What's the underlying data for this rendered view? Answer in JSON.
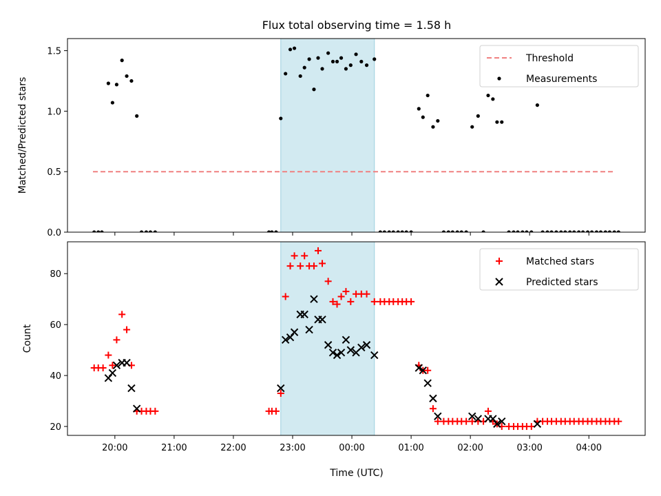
{
  "chart_data": {
    "title": "Flux total observing time = 1.58 h",
    "xlabel": "Time (UTC)",
    "x_unit": "hours UTC (values past 24 are after midnight)",
    "x_ticks": [
      {
        "value": 20,
        "label": "20:00"
      },
      {
        "value": 21,
        "label": "21:00"
      },
      {
        "value": 22,
        "label": "22:00"
      },
      {
        "value": 23,
        "label": "23:00"
      },
      {
        "value": 24,
        "label": "00:00"
      },
      {
        "value": 25,
        "label": "01:00"
      },
      {
        "value": 26,
        "label": "02:00"
      },
      {
        "value": 27,
        "label": "03:00"
      },
      {
        "value": 28,
        "label": "04:00"
      }
    ],
    "xlim": [
      19.2,
      28.95
    ],
    "shaded_interval": {
      "x": [
        22.8,
        24.38
      ],
      "color": "#add8e6"
    },
    "panels": [
      {
        "type": "scatter",
        "ylabel": "Matched/Predicted stars",
        "ylim": [
          0,
          1.6
        ],
        "y_ticks": [
          {
            "value": 0,
            "label": "0.0"
          },
          {
            "value": 0.5,
            "label": "0.5"
          },
          {
            "value": 1.0,
            "label": "1.0"
          },
          {
            "value": 1.5,
            "label": "1.5"
          }
        ],
        "legend": {
          "position": "upper-right",
          "items": [
            "Threshold",
            "Measurements"
          ]
        },
        "series": [
          {
            "name": "Threshold",
            "style": "dashed-line",
            "color": "#f08080",
            "x": [
              19.63,
              28.45
            ],
            "y": [
              0.5,
              0.5
            ]
          },
          {
            "name": "Measurements",
            "style": "dot",
            "color": "#000000",
            "points": [
              [
                19.65,
                0
              ],
              [
                19.72,
                0
              ],
              [
                19.78,
                0
              ],
              [
                19.89,
                1.23
              ],
              [
                19.96,
                1.07
              ],
              [
                20.03,
                1.22
              ],
              [
                20.12,
                1.42
              ],
              [
                20.2,
                1.29
              ],
              [
                20.28,
                1.25
              ],
              [
                20.37,
                0.96
              ],
              [
                20.45,
                0
              ],
              [
                20.53,
                0
              ],
              [
                20.6,
                0
              ],
              [
                20.68,
                0
              ],
              [
                22.6,
                0
              ],
              [
                22.65,
                0
              ],
              [
                22.72,
                0
              ],
              [
                22.8,
                0.94
              ],
              [
                22.88,
                1.31
              ],
              [
                22.96,
                1.51
              ],
              [
                23.03,
                1.52
              ],
              [
                23.13,
                1.29
              ],
              [
                23.2,
                1.36
              ],
              [
                23.28,
                1.43
              ],
              [
                23.36,
                1.18
              ],
              [
                23.43,
                1.44
              ],
              [
                23.5,
                1.35
              ],
              [
                23.6,
                1.48
              ],
              [
                23.68,
                1.41
              ],
              [
                23.75,
                1.41
              ],
              [
                23.82,
                1.44
              ],
              [
                23.9,
                1.35
              ],
              [
                23.98,
                1.38
              ],
              [
                24.07,
                1.47
              ],
              [
                24.16,
                1.41
              ],
              [
                24.25,
                1.38
              ],
              [
                24.38,
                1.43
              ],
              [
                24.48,
                0
              ],
              [
                24.55,
                0
              ],
              [
                24.63,
                0
              ],
              [
                24.7,
                0
              ],
              [
                24.78,
                0
              ],
              [
                24.85,
                0
              ],
              [
                24.92,
                0
              ],
              [
                25.0,
                0
              ],
              [
                25.13,
                1.02
              ],
              [
                25.2,
                0.95
              ],
              [
                25.28,
                1.13
              ],
              [
                25.37,
                0.87
              ],
              [
                25.45,
                0.92
              ],
              [
                25.55,
                0
              ],
              [
                25.63,
                0
              ],
              [
                25.7,
                0
              ],
              [
                25.78,
                0
              ],
              [
                25.85,
                0
              ],
              [
                25.93,
                0
              ],
              [
                26.03,
                0.87
              ],
              [
                26.13,
                0.96
              ],
              [
                26.22,
                0
              ],
              [
                26.3,
                1.13
              ],
              [
                26.38,
                1.1
              ],
              [
                26.45,
                0.91
              ],
              [
                26.53,
                0.91
              ],
              [
                26.65,
                0
              ],
              [
                26.73,
                0
              ],
              [
                26.8,
                0
              ],
              [
                26.88,
                0
              ],
              [
                26.95,
                0
              ],
              [
                27.03,
                0
              ],
              [
                27.13,
                1.05
              ],
              [
                27.22,
                0
              ],
              [
                27.3,
                0
              ],
              [
                27.37,
                0
              ],
              [
                27.45,
                0
              ],
              [
                27.53,
                0
              ],
              [
                27.6,
                0
              ],
              [
                27.68,
                0
              ],
              [
                27.75,
                0
              ],
              [
                27.83,
                0
              ],
              [
                27.9,
                0
              ],
              [
                27.98,
                0
              ],
              [
                28.05,
                0
              ],
              [
                28.13,
                0
              ],
              [
                28.2,
                0
              ],
              [
                28.28,
                0
              ],
              [
                28.35,
                0
              ],
              [
                28.43,
                0
              ],
              [
                28.5,
                0
              ]
            ]
          }
        ]
      },
      {
        "type": "scatter",
        "ylabel": "Count",
        "ylim": [
          16.5,
          92.5
        ],
        "y_ticks": [
          {
            "value": 20,
            "label": "20"
          },
          {
            "value": 40,
            "label": "40"
          },
          {
            "value": 60,
            "label": "60"
          },
          {
            "value": 80,
            "label": "80"
          }
        ],
        "legend": {
          "position": "upper-right",
          "items": [
            "Matched stars",
            "Predicted stars"
          ]
        },
        "series": [
          {
            "name": "Matched stars",
            "marker": "plus",
            "color": "#ff0000",
            "points": [
              [
                19.65,
                43
              ],
              [
                19.72,
                43
              ],
              [
                19.8,
                43
              ],
              [
                19.89,
                48
              ],
              [
                19.96,
                44
              ],
              [
                20.03,
                54
              ],
              [
                20.12,
                64
              ],
              [
                20.2,
                58
              ],
              [
                20.28,
                44
              ],
              [
                20.37,
                26
              ],
              [
                20.45,
                26
              ],
              [
                20.53,
                26
              ],
              [
                20.6,
                26
              ],
              [
                20.68,
                26
              ],
              [
                22.6,
                26
              ],
              [
                22.65,
                26
              ],
              [
                22.72,
                26
              ],
              [
                22.8,
                33
              ],
              [
                22.88,
                71
              ],
              [
                22.96,
                83
              ],
              [
                23.03,
                87
              ],
              [
                23.13,
                83
              ],
              [
                23.2,
                87
              ],
              [
                23.28,
                83
              ],
              [
                23.36,
                83
              ],
              [
                23.43,
                89
              ],
              [
                23.5,
                84
              ],
              [
                23.6,
                77
              ],
              [
                23.68,
                69
              ],
              [
                23.75,
                68
              ],
              [
                23.82,
                71
              ],
              [
                23.9,
                73
              ],
              [
                23.98,
                69
              ],
              [
                24.07,
                72
              ],
              [
                24.16,
                72
              ],
              [
                24.25,
                72
              ],
              [
                24.38,
                69
              ],
              [
                24.48,
                69
              ],
              [
                24.55,
                69
              ],
              [
                24.63,
                69
              ],
              [
                24.7,
                69
              ],
              [
                24.78,
                69
              ],
              [
                24.85,
                69
              ],
              [
                24.92,
                69
              ],
              [
                25.0,
                69
              ],
              [
                25.13,
                44
              ],
              [
                25.2,
                42
              ],
              [
                25.28,
                42
              ],
              [
                25.37,
                27
              ],
              [
                25.45,
                22
              ],
              [
                25.55,
                22
              ],
              [
                25.63,
                22
              ],
              [
                25.7,
                22
              ],
              [
                25.78,
                22
              ],
              [
                25.85,
                22
              ],
              [
                25.93,
                22
              ],
              [
                26.03,
                22
              ],
              [
                26.13,
                22
              ],
              [
                26.22,
                22
              ],
              [
                26.3,
                26
              ],
              [
                26.38,
                22
              ],
              [
                26.45,
                21
              ],
              [
                26.53,
                20
              ],
              [
                26.65,
                20
              ],
              [
                26.73,
                20
              ],
              [
                26.8,
                20
              ],
              [
                26.88,
                20
              ],
              [
                26.95,
                20
              ],
              [
                27.03,
                20
              ],
              [
                27.13,
                22
              ],
              [
                27.22,
                22
              ],
              [
                27.3,
                22
              ],
              [
                27.37,
                22
              ],
              [
                27.45,
                22
              ],
              [
                27.53,
                22
              ],
              [
                27.6,
                22
              ],
              [
                27.68,
                22
              ],
              [
                27.75,
                22
              ],
              [
                27.83,
                22
              ],
              [
                27.9,
                22
              ],
              [
                27.98,
                22
              ],
              [
                28.05,
                22
              ],
              [
                28.13,
                22
              ],
              [
                28.2,
                22
              ],
              [
                28.28,
                22
              ],
              [
                28.35,
                22
              ],
              [
                28.43,
                22
              ],
              [
                28.5,
                22
              ]
            ]
          },
          {
            "name": "Predicted stars",
            "marker": "x",
            "color": "#000000",
            "points": [
              [
                19.89,
                39
              ],
              [
                19.96,
                41
              ],
              [
                20.03,
                44
              ],
              [
                20.12,
                45
              ],
              [
                20.2,
                45
              ],
              [
                20.28,
                35
              ],
              [
                20.37,
                27
              ],
              [
                22.8,
                35
              ],
              [
                22.88,
                54
              ],
              [
                22.96,
                55
              ],
              [
                23.03,
                57
              ],
              [
                23.13,
                64
              ],
              [
                23.2,
                64
              ],
              [
                23.28,
                58
              ],
              [
                23.36,
                70
              ],
              [
                23.43,
                62
              ],
              [
                23.5,
                62
              ],
              [
                23.6,
                52
              ],
              [
                23.68,
                49
              ],
              [
                23.75,
                48
              ],
              [
                23.82,
                49
              ],
              [
                23.9,
                54
              ],
              [
                23.98,
                50
              ],
              [
                24.07,
                49
              ],
              [
                24.16,
                51
              ],
              [
                24.25,
                52
              ],
              [
                24.38,
                48
              ],
              [
                25.13,
                43
              ],
              [
                25.2,
                42
              ],
              [
                25.28,
                37
              ],
              [
                25.37,
                31
              ],
              [
                25.45,
                24
              ],
              [
                26.03,
                24
              ],
              [
                26.13,
                23
              ],
              [
                26.3,
                23
              ],
              [
                26.38,
                23
              ],
              [
                26.45,
                21
              ],
              [
                26.53,
                22
              ],
              [
                27.13,
                21
              ]
            ]
          }
        ]
      }
    ]
  }
}
